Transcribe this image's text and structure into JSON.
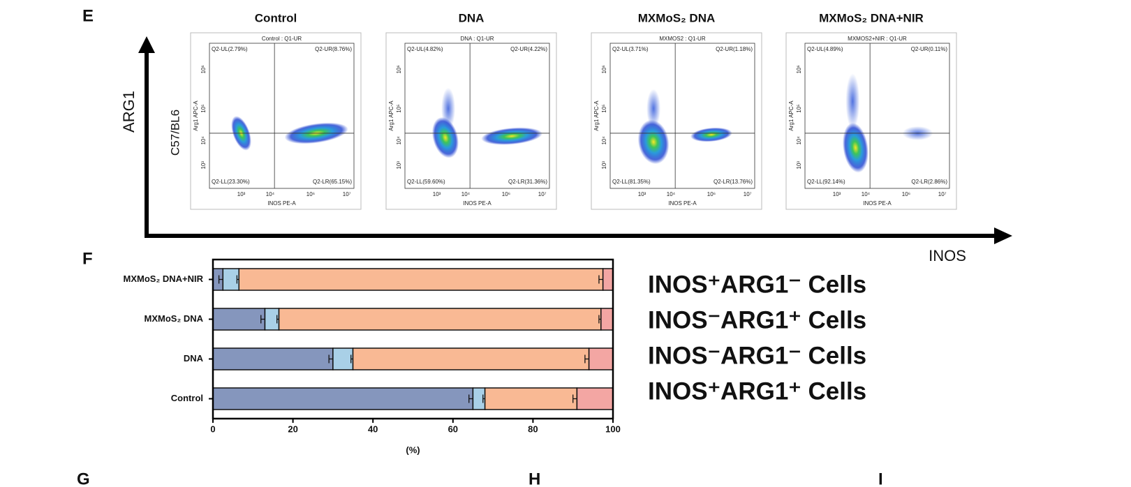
{
  "panels": {
    "e": "E",
    "f": "F",
    "g": "G",
    "h": "H",
    "i": "I"
  },
  "flow": {
    "y_arrow_label": "ARG1",
    "x_arrow_label": "INOS",
    "strain": "C57/BL6",
    "y_axis_label": "Arg1 APC-A",
    "x_axis_label": "INOS PE-A",
    "x_ticks": [
      "10³",
      "10⁴",
      "10⁶",
      "10⁷"
    ],
    "y_ticks": [
      "10³",
      "10⁴",
      "10⁵",
      "10⁶"
    ],
    "plots": [
      {
        "title": "Control",
        "gate": "Control : Q1-UR",
        "ul": "Q2-UL(2.79%)",
        "ur": "Q2-UR(8.76%)",
        "ll": "Q2-LL(23.30%)",
        "lr": "Q2-LR(65.15%)"
      },
      {
        "title": "DNA",
        "gate": "DNA : Q1-UR",
        "ul": "Q2-UL(4.82%)",
        "ur": "Q2-UR(4.22%)",
        "ll": "Q2-LL(59.60%)",
        "lr": "Q2-LR(31.36%)"
      },
      {
        "title": "MXMoS₂ DNA",
        "gate": "MXMOS2 : Q1-UR",
        "ul": "Q2-UL(3.71%)",
        "ur": "Q2-UR(1.18%)",
        "ll": "Q2-LL(81.35%)",
        "lr": "Q2-LR(13.76%)"
      },
      {
        "title": "MXMoS₂ DNA+NIR",
        "gate": "MXMOS2+NIR : Q1-UR",
        "ul": "Q2-UL(4.89%)",
        "ur": "Q2-UR(0.11%)",
        "ll": "Q2-LL(92.14%)",
        "lr": "Q2-LR(2.86%)"
      }
    ]
  },
  "chart_data": {
    "type": "stacked_barh",
    "xlabel": "(%)",
    "categories": [
      "MXMoS₂ DNA+NIR",
      "MXMoS₂ DNA",
      "DNA",
      "Control"
    ],
    "xlim": [
      0,
      100
    ],
    "xticks": [
      0,
      20,
      40,
      60,
      80,
      100
    ],
    "series": [
      {
        "name": "INOS⁺ARG1⁻ Cells",
        "color": "#8596bd",
        "values": [
          2.5,
          13,
          30,
          65
        ],
        "errors": [
          1,
          1,
          1,
          1
        ]
      },
      {
        "name": "INOS⁻ARG1⁺ Cells",
        "color": "#a9d0e7",
        "values": [
          4,
          3.5,
          5,
          3
        ],
        "errors": [
          0.5,
          0.5,
          0.5,
          0.5
        ]
      },
      {
        "name": "INOS⁻ARG1⁻ Cells",
        "color": "#f9b994",
        "values": [
          91,
          80.5,
          59,
          23
        ],
        "errors": [
          1,
          0.5,
          1,
          1
        ]
      },
      {
        "name": "INOS⁺ARG1⁺ Cells",
        "color": "#f3a6a3",
        "values": [
          2.5,
          3,
          6,
          9
        ]
      }
    ]
  }
}
